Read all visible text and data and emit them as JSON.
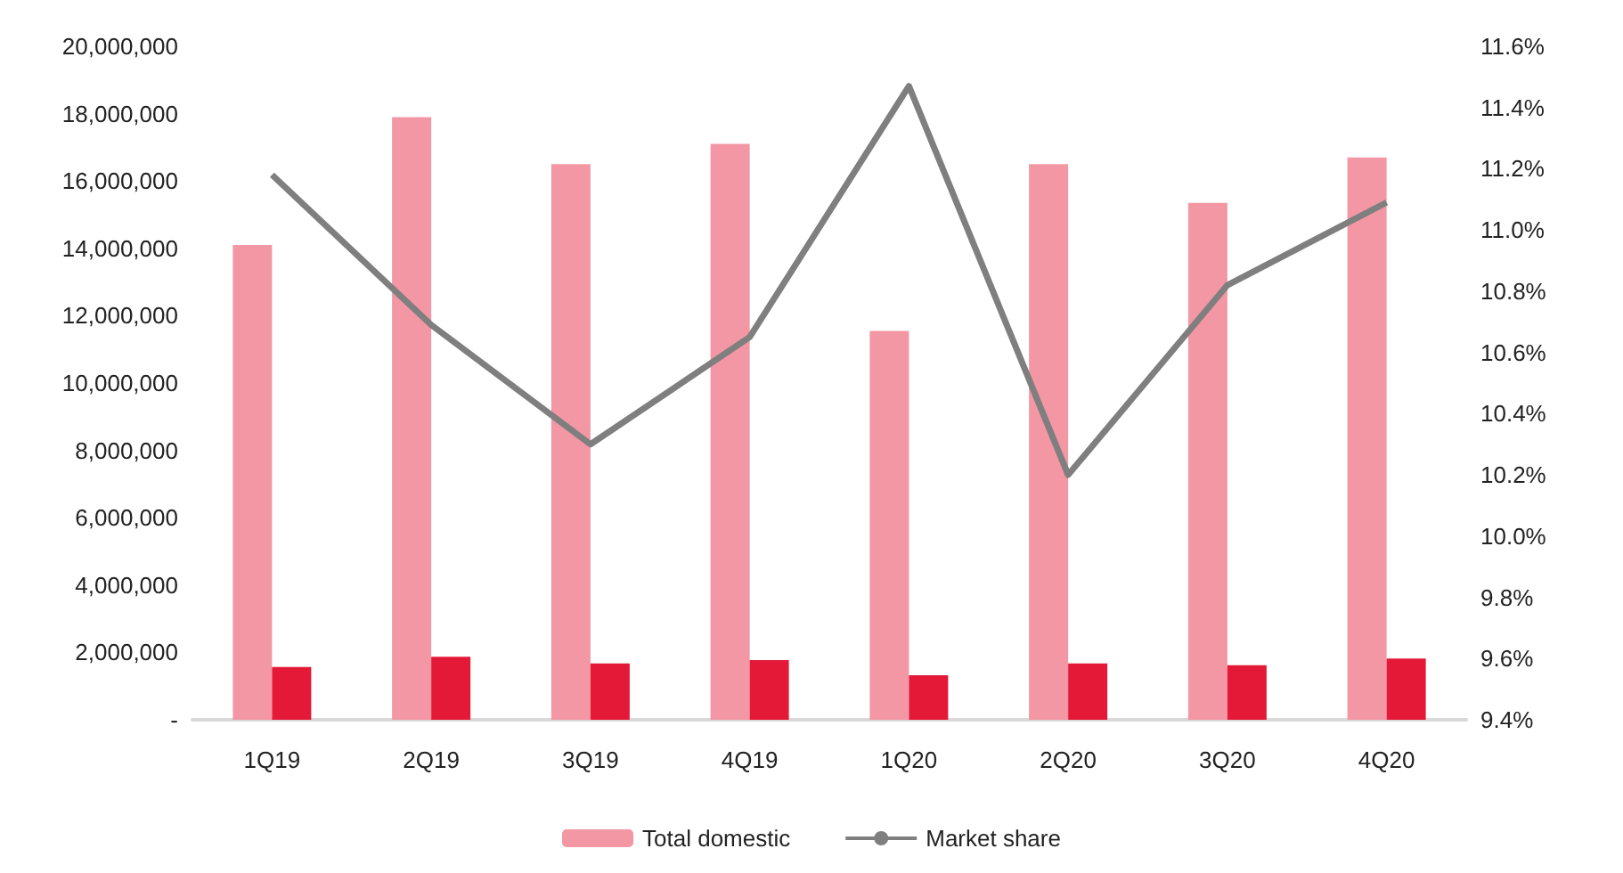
{
  "chart_data": {
    "type": "bar",
    "categories": [
      "1Q19",
      "2Q19",
      "3Q19",
      "4Q19",
      "1Q20",
      "2Q20",
      "3Q20",
      "4Q20"
    ],
    "series": [
      {
        "name": "Total domestic",
        "color": "#f297a3",
        "values": [
          14100000,
          17900000,
          16500000,
          17100000,
          11550000,
          16500000,
          15350000,
          16700000
        ]
      },
      {
        "color": "#e31937",
        "values": [
          1570000,
          1870000,
          1670000,
          1770000,
          1320000,
          1670000,
          1620000,
          1820000
        ]
      },
      {
        "name": "Market share",
        "type": "line",
        "axis": "y2",
        "color": "#7f7f7f",
        "values": [
          11.18,
          10.69,
          10.3,
          10.65,
          11.47,
          10.2,
          10.82,
          11.09
        ]
      }
    ],
    "ylim": [
      0,
      20000000
    ],
    "yticks": [
      {
        "value": 0,
        "label": "-"
      },
      {
        "value": 2000000,
        "label": "2,000,000"
      },
      {
        "value": 4000000,
        "label": "4,000,000"
      },
      {
        "value": 6000000,
        "label": "6,000,000"
      },
      {
        "value": 8000000,
        "label": "8,000,000"
      },
      {
        "value": 10000000,
        "label": "10,000,000"
      },
      {
        "value": 12000000,
        "label": "12,000,000"
      },
      {
        "value": 14000000,
        "label": "14,000,000"
      },
      {
        "value": 16000000,
        "label": "16,000,000"
      },
      {
        "value": 18000000,
        "label": "18,000,000"
      },
      {
        "value": 20000000,
        "label": "20,000,000"
      }
    ],
    "y2lim": [
      9.4,
      11.6
    ],
    "y2ticks": [
      {
        "value": 9.4,
        "label": "9.4%"
      },
      {
        "value": 9.6,
        "label": "9.6%"
      },
      {
        "value": 9.8,
        "label": "9.8%"
      },
      {
        "value": 10.0,
        "label": "10.0%"
      },
      {
        "value": 10.2,
        "label": "10.2%"
      },
      {
        "value": 10.4,
        "label": "10.4%"
      },
      {
        "value": 10.6,
        "label": "10.6%"
      },
      {
        "value": 10.8,
        "label": "10.8%"
      },
      {
        "value": 11.0,
        "label": "11.0%"
      },
      {
        "value": 11.2,
        "label": "11.2%"
      },
      {
        "value": 11.4,
        "label": "11.4%"
      },
      {
        "value": 11.6,
        "label": "11.6%"
      }
    ],
    "grid": false,
    "legend": "bottom",
    "marker": "none",
    "line_style": "solid"
  }
}
